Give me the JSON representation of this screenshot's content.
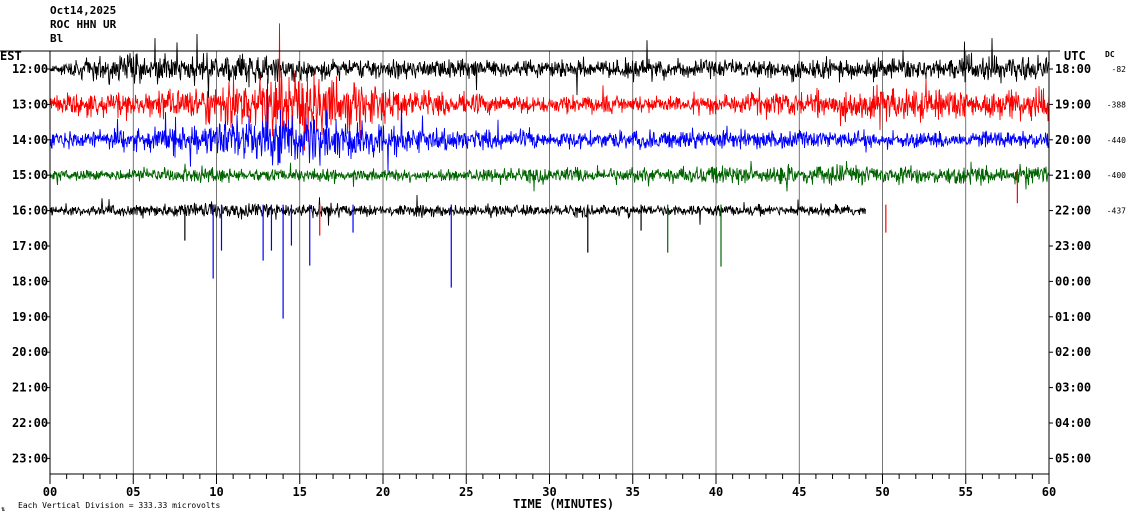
{
  "header": {
    "date": "Oct14,2025",
    "station": "ROC HHN UR",
    "network": "Bl"
  },
  "chart_data": {
    "type": "line",
    "title": "Oct14,2025",
    "xlabel": "TIME (MINUTES)",
    "ylabel": "",
    "x_ticks": [
      "00",
      "05",
      "10",
      "15",
      "20",
      "25",
      "30",
      "35",
      "40",
      "45",
      "50",
      "55",
      "60"
    ],
    "x_range_minutes": [
      0,
      60
    ],
    "left_timezone_label": "EST",
    "right_timezone_label": "UTC",
    "dc_label": "DC",
    "left_hours": [
      "12:00",
      "13:00",
      "14:00",
      "15:00",
      "16:00",
      "17:00",
      "18:00",
      "19:00",
      "20:00",
      "21:00",
      "22:00",
      "23:00"
    ],
    "right_hours": [
      "18:00",
      "19:00",
      "20:00",
      "21:00",
      "22:00",
      "23:00",
      "00:00",
      "01:00",
      "02:00",
      "03:00",
      "04:00",
      "05:00"
    ],
    "dc_offsets": [
      "-82",
      "-388",
      "-440",
      "-400",
      "-437"
    ],
    "series": [
      {
        "row": 0,
        "color": "#000000",
        "end_minute": 60,
        "noise": [
          3,
          12,
          14,
          12,
          14,
          10,
          9,
          8,
          8,
          9,
          9,
          8,
          9,
          8,
          8,
          10,
          9,
          9,
          11,
          12,
          12
        ]
      },
      {
        "row": 1,
        "color": "#ff0000",
        "end_minute": 60,
        "noise": [
          8,
          10,
          12,
          16,
          28,
          30,
          24,
          14,
          10,
          9,
          8,
          8,
          8,
          9,
          9,
          12,
          14,
          16,
          14,
          14,
          14
        ]
      },
      {
        "row": 2,
        "color": "#0000ff",
        "end_minute": 60,
        "noise": [
          10,
          9,
          10,
          14,
          22,
          26,
          18,
          12,
          10,
          9,
          8,
          8,
          8,
          9,
          8,
          8,
          7,
          7,
          8,
          8,
          9
        ]
      },
      {
        "row": 3,
        "color": "#006400",
        "end_minute": 60,
        "noise": [
          5,
          5,
          6,
          7,
          6,
          6,
          5,
          5,
          5,
          6,
          7,
          7,
          7,
          8,
          9,
          9,
          9,
          8,
          8,
          8,
          8
        ]
      },
      {
        "row": 4,
        "color": "#000000",
        "end_minute": 49,
        "noise": [
          4,
          5,
          6,
          7,
          7,
          5,
          5,
          5,
          5,
          5,
          5,
          5,
          5,
          5,
          5,
          5,
          5
        ]
      }
    ],
    "spikes": [
      {
        "minute": 8.1,
        "row": 4,
        "dy": 30,
        "color": "#000000"
      },
      {
        "minute": 9.8,
        "row": 4,
        "dy": 68,
        "color": "#0000ff"
      },
      {
        "minute": 10.3,
        "row": 4,
        "dy": 40,
        "color": "#0000ff"
      },
      {
        "minute": 12.8,
        "row": 4,
        "dy": 50,
        "color": "#0000ff"
      },
      {
        "minute": 13.3,
        "row": 4,
        "dy": 40,
        "color": "#0000ff"
      },
      {
        "minute": 14.0,
        "row": 4,
        "dy": 108,
        "color": "#0000ff"
      },
      {
        "minute": 14.5,
        "row": 4,
        "dy": 35,
        "color": "#0000ff"
      },
      {
        "minute": 15.6,
        "row": 4,
        "dy": 55,
        "color": "#0000ff"
      },
      {
        "minute": 16.2,
        "row": 4,
        "dy": 25,
        "color": "#ff0000"
      },
      {
        "minute": 18.2,
        "row": 4,
        "dy": 22,
        "color": "#0000ff"
      },
      {
        "minute": 24.1,
        "row": 4,
        "dy": 77,
        "color": "#0000ff"
      },
      {
        "minute": 32.3,
        "row": 4,
        "dy": 42,
        "color": "#000000"
      },
      {
        "minute": 35.5,
        "row": 4,
        "dy": 20,
        "color": "#000000"
      },
      {
        "minute": 37.1,
        "row": 4,
        "dy": 42,
        "color": "#006400"
      },
      {
        "minute": 40.3,
        "row": 4,
        "dy": 56,
        "color": "#006400"
      },
      {
        "minute": 50.2,
        "row": 4,
        "dy": 22,
        "color": "#ff0000"
      },
      {
        "minute": 58.1,
        "row": 3,
        "dy": 28,
        "color": "#ff0000"
      }
    ],
    "legend": "Each Vertical Division =  333.33 microvolts",
    "grid": true
  }
}
